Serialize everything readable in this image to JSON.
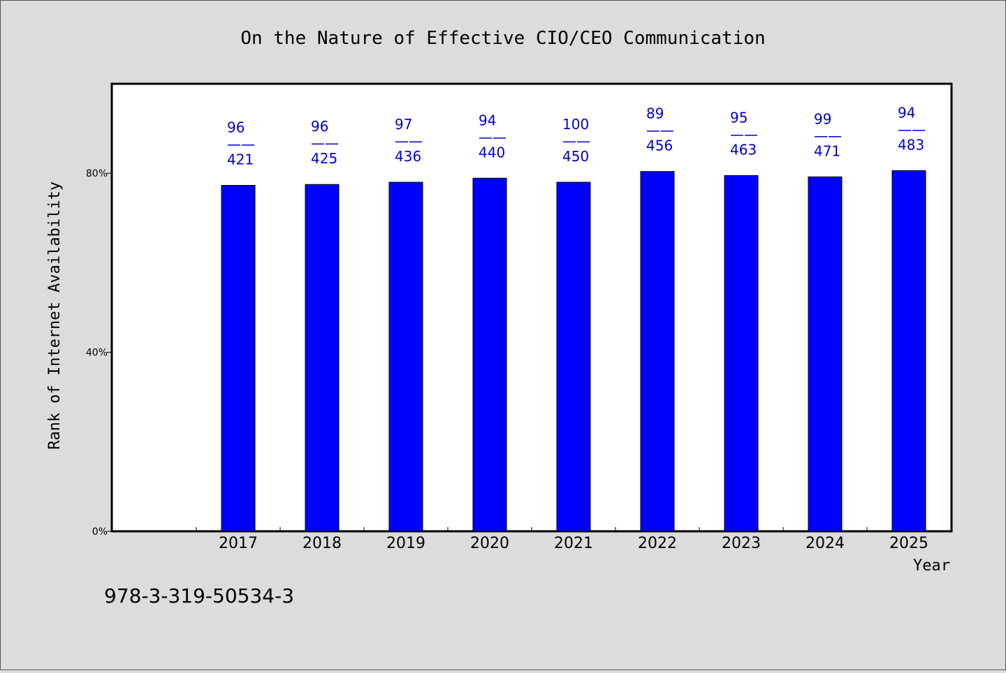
{
  "chart_data": {
    "type": "bar",
    "title": "On the Nature of Effective CIO/CEO Communication",
    "xlabel": "Year",
    "ylabel": "Rank of Internet Availability",
    "categories": [
      "2017",
      "2018",
      "2019",
      "2020",
      "2021",
      "2022",
      "2023",
      "2024",
      "2025"
    ],
    "series": [
      {
        "values": [
          77.3,
          77.5,
          78.0,
          78.9,
          78.0,
          80.4,
          79.5,
          79.2,
          80.6
        ]
      }
    ],
    "data_labels": [
      {
        "top": "96",
        "sep": "——",
        "bottom": "421"
      },
      {
        "top": "96",
        "sep": "——",
        "bottom": "425"
      },
      {
        "top": "97",
        "sep": "——",
        "bottom": "436"
      },
      {
        "top": "94",
        "sep": "——",
        "bottom": "440"
      },
      {
        "top": "100",
        "sep": "——",
        "bottom": "450"
      },
      {
        "top": "89",
        "sep": "——",
        "bottom": "456"
      },
      {
        "top": "95",
        "sep": "——",
        "bottom": "463"
      },
      {
        "top": "99",
        "sep": "——",
        "bottom": "471"
      },
      {
        "top": "94",
        "sep": "——",
        "bottom": "483"
      }
    ],
    "ylim": [
      0,
      100
    ],
    "yticks": [
      {
        "value": 0,
        "label": "0%"
      },
      {
        "value": 40,
        "label": "40%"
      },
      {
        "value": 80,
        "label": "80%"
      }
    ],
    "grid": false,
    "legend": "none",
    "colors": {
      "bar": "#0000ff",
      "label": "#0000cc",
      "plot_bg": "#ffffff",
      "page_bg": "#dcdcdc"
    }
  },
  "footer_text": "978-3-319-50534-3"
}
